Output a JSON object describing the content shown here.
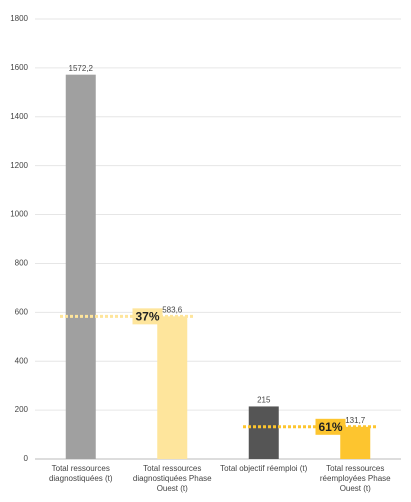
{
  "chart_data": {
    "type": "bar",
    "categories": [
      "Total ressources diagnostiquées (t)",
      "Total ressources diagnostiquées Phase Ouest (t)",
      "Total objectif réemploi (t)",
      "Total ressources réemployées Phase Ouest (t)"
    ],
    "values": [
      1572.2,
      583.6,
      215,
      131.7
    ],
    "value_labels": [
      "1572,2",
      "583,6",
      "215",
      "131,7"
    ],
    "colors": [
      "#a0a0a0",
      "#fee59c",
      "#555555",
      "#fdc52f"
    ],
    "ylim": [
      0,
      1800
    ],
    "yticks": [
      0,
      200,
      400,
      600,
      800,
      1000,
      1200,
      1400,
      1600,
      1800
    ],
    "grid": true,
    "annotations": [
      {
        "label": "37%",
        "color": "#fee59c"
      },
      {
        "label": "61%",
        "color": "#fdc52f"
      }
    ]
  }
}
